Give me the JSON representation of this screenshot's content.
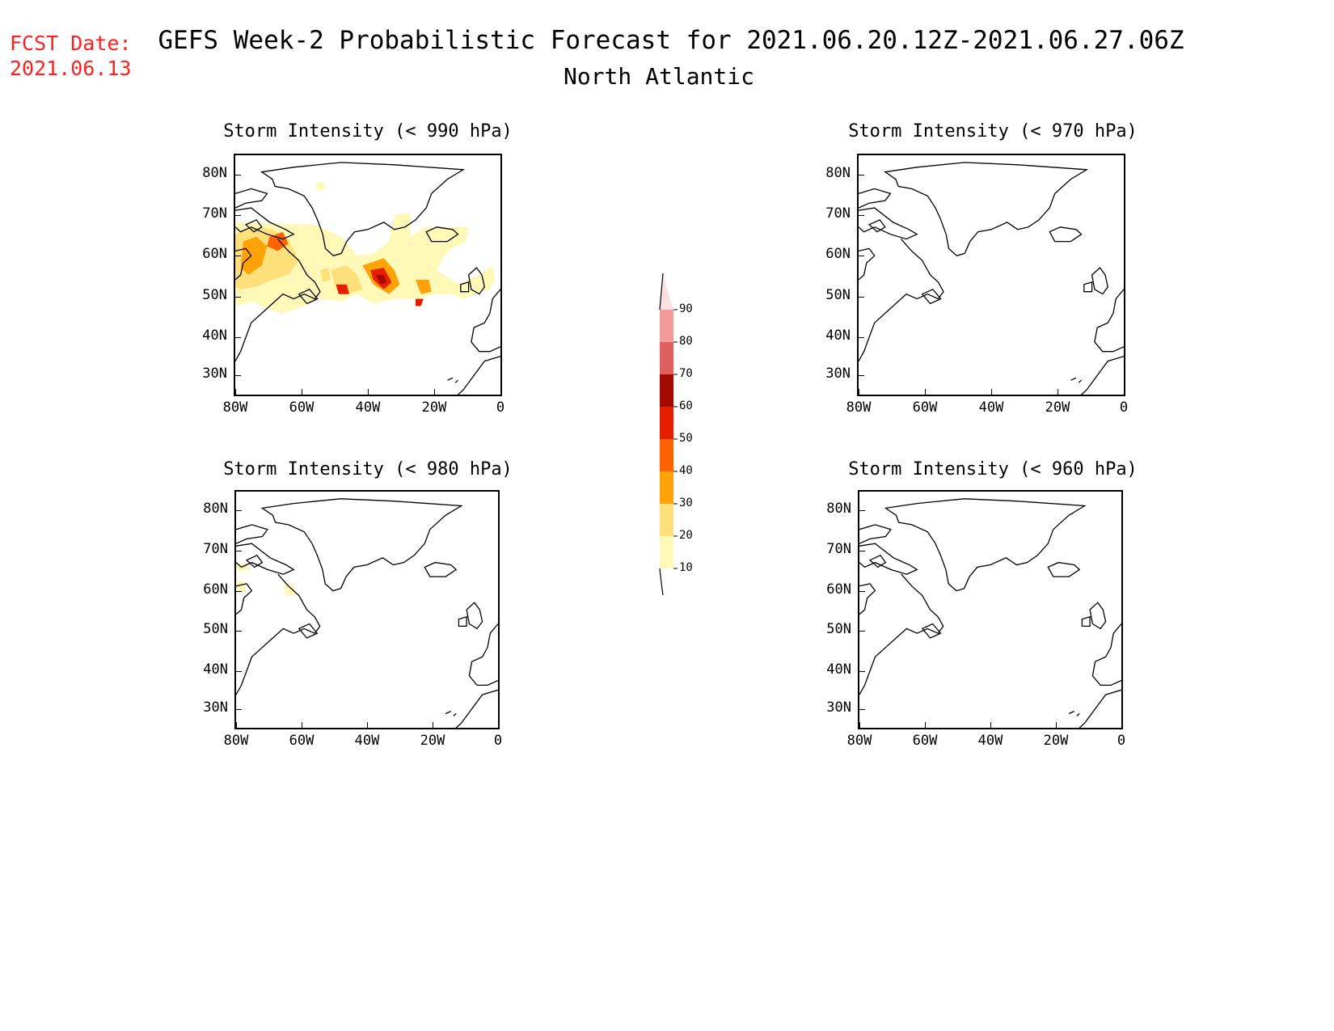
{
  "header": {
    "fcst_label": "FCST Date:",
    "fcst_date": "2021.06.13",
    "title": "GEFS Week-2 Probabilistic Forecast for 2021.06.20.12Z-2021.06.27.06Z",
    "subtitle": "North Atlantic"
  },
  "axes": {
    "lat_labels": [
      "80N",
      "70N",
      "60N",
      "50N",
      "40N",
      "30N"
    ],
    "lon_labels": [
      "80W",
      "60W",
      "40W",
      "20W",
      "0"
    ]
  },
  "panels": {
    "p990": {
      "title": "Storm Intensity (< 990 hPa)"
    },
    "p970": {
      "title": "Storm Intensity (< 970 hPa)"
    },
    "p980": {
      "title": "Storm Intensity (< 980 hPa)"
    },
    "p960": {
      "title": "Storm Intensity (< 960 hPa)"
    }
  },
  "colorbar": {
    "labels": [
      "10",
      "20",
      "30",
      "40",
      "50",
      "60",
      "70",
      "80",
      "90"
    ],
    "colors": [
      "#fff9b8",
      "#fde07a",
      "#ffa20a",
      "#ff6200",
      "#e61e00",
      "#a50a00",
      "#e06060",
      "#f29a9a",
      "#fde0e0"
    ]
  }
}
